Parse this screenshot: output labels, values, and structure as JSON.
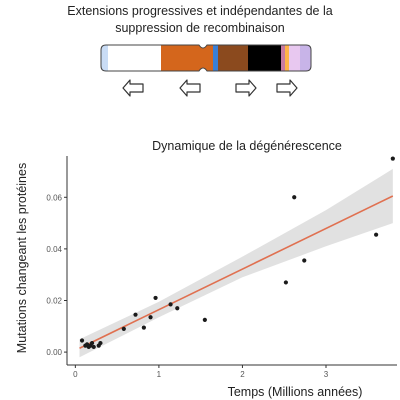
{
  "header": {
    "line1": "Extensions progressives et indépendantes de la",
    "line2": "suppression de recombinaison"
  },
  "chromosome": {
    "segment_colors": [
      "#c9dcf5",
      "#ffffff",
      "#d4661c",
      "#3a7fd6",
      "#8b4a1e",
      "#000000",
      "#c87aa0",
      "#ffb347",
      "#e8c8f0",
      "#c8b4e8"
    ],
    "arrows": [
      "left-arrow-icon",
      "left-arrow-icon",
      "right-arrow-icon",
      "right-arrow-icon"
    ]
  },
  "colors": {
    "fit_line": "#e07050",
    "confidence_band": "#d9d9d9",
    "points": "#1a1a1a"
  },
  "chart_data": {
    "type": "scatter",
    "title": "Dynamique de la dégénérescence",
    "xlabel": "Temps (Millions années)",
    "ylabel": "Mutations changeant les protéines",
    "xlim": [
      -0.1,
      3.85
    ],
    "ylim": [
      -0.005,
      0.076
    ],
    "x_ticks": [
      0,
      1,
      2,
      3
    ],
    "y_ticks": [
      0.0,
      0.02,
      0.04,
      0.06
    ],
    "y_tick_labels": [
      "0.00",
      "0.02",
      "0.04",
      "0.06"
    ],
    "grid": false,
    "points": [
      {
        "x": 0.08,
        "y": 0.0045
      },
      {
        "x": 0.12,
        "y": 0.0025
      },
      {
        "x": 0.14,
        "y": 0.003
      },
      {
        "x": 0.16,
        "y": 0.002
      },
      {
        "x": 0.18,
        "y": 0.0025
      },
      {
        "x": 0.2,
        "y": 0.0035
      },
      {
        "x": 0.22,
        "y": 0.002
      },
      {
        "x": 0.28,
        "y": 0.0025
      },
      {
        "x": 0.3,
        "y": 0.0035
      },
      {
        "x": 0.58,
        "y": 0.009
      },
      {
        "x": 0.72,
        "y": 0.0145
      },
      {
        "x": 0.82,
        "y": 0.0095
      },
      {
        "x": 0.9,
        "y": 0.0135
      },
      {
        "x": 0.96,
        "y": 0.021
      },
      {
        "x": 1.14,
        "y": 0.0185
      },
      {
        "x": 1.22,
        "y": 0.017
      },
      {
        "x": 1.55,
        "y": 0.0125
      },
      {
        "x": 2.52,
        "y": 0.027
      },
      {
        "x": 2.62,
        "y": 0.06
      },
      {
        "x": 2.74,
        "y": 0.0355
      },
      {
        "x": 3.6,
        "y": 0.0455
      },
      {
        "x": 3.8,
        "y": 0.075
      }
    ],
    "fit": {
      "x": [
        0.05,
        3.8
      ],
      "y": [
        0.0015,
        0.0605
      ]
    },
    "confidence_band": {
      "x": [
        0.05,
        1.0,
        2.0,
        3.0,
        3.8
      ],
      "lower": [
        -0.002,
        0.0135,
        0.029,
        0.041,
        0.05
      ],
      "upper": [
        0.005,
        0.0195,
        0.037,
        0.055,
        0.071
      ]
    }
  }
}
